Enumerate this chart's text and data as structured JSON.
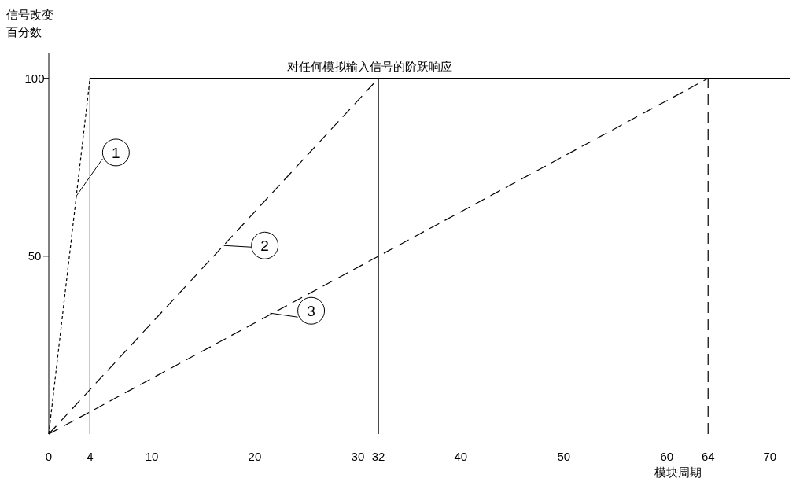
{
  "chart_data": {
    "type": "line",
    "title": "对任何模拟输入信号的阶跃响应",
    "ylabel": "信号改变百分数",
    "xlabel": "模块周期",
    "xlim": [
      0,
      72
    ],
    "ylim": [
      0,
      107
    ],
    "xticks": [
      0,
      4,
      10,
      20,
      30,
      32,
      40,
      50,
      60,
      64,
      70
    ],
    "yticks": [
      50,
      100
    ],
    "tick_labels": "xy",
    "series": [
      {
        "color": "#000000",
        "x": [
          0,
          4
        ],
        "values": [
          0,
          100
        ],
        "line_style": "dotted"
      },
      {
        "color": "#000000",
        "x": [
          0,
          32
        ],
        "values": [
          0,
          100
        ],
        "line_style": "dashed"
      },
      {
        "color": "#000000",
        "x": [
          0,
          64
        ],
        "values": [
          0,
          100
        ],
        "line_style": "dashed"
      },
      {
        "color": "#000000",
        "x": [
          4,
          4,
          72
        ],
        "values": [
          0,
          100,
          100
        ],
        "line_style": "solid"
      },
      {
        "color": "#000000",
        "x": [
          32,
          32
        ],
        "values": [
          0,
          100
        ],
        "line_style": "solid"
      },
      {
        "color": "#000000",
        "x": [
          64,
          64
        ],
        "values": [
          0,
          100
        ],
        "line_style": "dashed"
      }
    ],
    "annotations": [
      {
        "text": "1",
        "x": 2.7,
        "y": 67
      },
      {
        "text": "2",
        "x": 17,
        "y": 53
      },
      {
        "text": "3",
        "x": 21.5,
        "y": 34
      }
    ]
  }
}
